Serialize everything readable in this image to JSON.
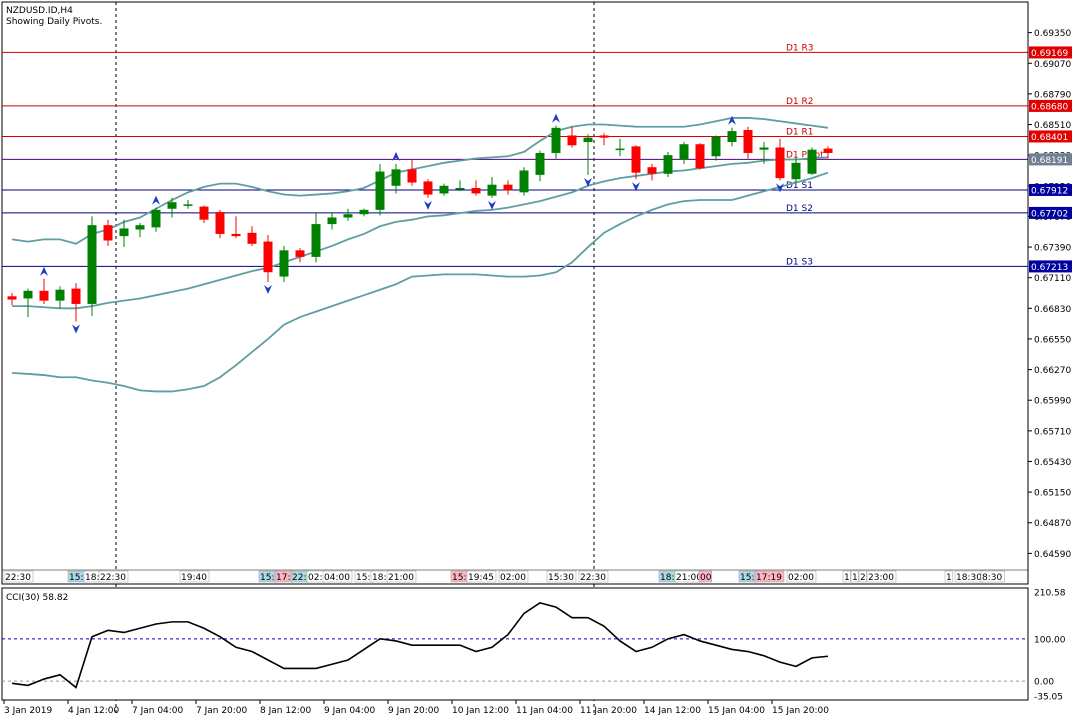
{
  "window": {
    "symbol_line": "NZDUSD.ID,H4",
    "subtitle": "Showing Daily Pivots."
  },
  "colors": {
    "bull": "#008000",
    "bear": "#ff0000",
    "band": "#5f9ea0",
    "resistance": "#d40000",
    "support": "#000080",
    "pivot": "#4b0082",
    "grid": "#000000",
    "cci": "#000000",
    "cci_level": "#0000cd"
  },
  "chart_data": [
    {
      "type": "candlestick",
      "title": "NZDUSD.ID,H4",
      "ylim": [
        0.6431,
        0.6963
      ],
      "price_ticks": [
        "0.69350",
        "0.69070",
        "0.68790",
        "0.68510",
        "0.68230",
        "0.67950",
        "0.67670",
        "0.67390",
        "0.67110",
        "0.66830",
        "0.66550",
        "0.66270",
        "0.65990",
        "0.65710",
        "0.65430",
        "0.65150",
        "0.64870",
        "0.64590"
      ],
      "levels": [
        {
          "name": "D1 R3",
          "value": 0.69169,
          "label": "0.69169",
          "kind": "resistance"
        },
        {
          "name": "D1 R2",
          "value": 0.6868,
          "label": "0.68680",
          "kind": "resistance"
        },
        {
          "name": "D1 R1",
          "value": 0.68401,
          "label": "0.68401",
          "kind": "resistance"
        },
        {
          "name": "D1 Pivot",
          "value": 0.68191,
          "label": "0.68191",
          "kind": "pivot"
        },
        {
          "name": "D1 S1",
          "value": 0.67912,
          "label": "0.67912",
          "kind": "support"
        },
        {
          "name": "D1 S2",
          "value": 0.67702,
          "label": "0.67702",
          "kind": "support"
        },
        {
          "name": "D1 S3",
          "value": 0.67213,
          "label": "0.67213",
          "kind": "support"
        }
      ],
      "candles": [
        {
          "o": 0.6694,
          "h": 0.6697,
          "l": 0.6686,
          "c": 0.6691
        },
        {
          "o": 0.6692,
          "h": 0.6701,
          "l": 0.6675,
          "c": 0.6699
        },
        {
          "o": 0.6699,
          "h": 0.671,
          "l": 0.6687,
          "c": 0.669
        },
        {
          "o": 0.669,
          "h": 0.6703,
          "l": 0.6683,
          "c": 0.67
        },
        {
          "o": 0.6701,
          "h": 0.6706,
          "l": 0.6671,
          "c": 0.6687
        },
        {
          "o": 0.6687,
          "h": 0.6767,
          "l": 0.6676,
          "c": 0.6759
        },
        {
          "o": 0.6759,
          "h": 0.6764,
          "l": 0.674,
          "c": 0.6745
        },
        {
          "o": 0.6749,
          "h": 0.6764,
          "l": 0.6739,
          "c": 0.6756
        },
        {
          "o": 0.6755,
          "h": 0.6761,
          "l": 0.6748,
          "c": 0.6759
        },
        {
          "o": 0.6757,
          "h": 0.6775,
          "l": 0.6753,
          "c": 0.6773
        },
        {
          "o": 0.6774,
          "h": 0.6784,
          "l": 0.6766,
          "c": 0.678
        },
        {
          "o": 0.6778,
          "h": 0.6782,
          "l": 0.6774,
          "c": 0.6778
        },
        {
          "o": 0.6776,
          "h": 0.6777,
          "l": 0.6761,
          "c": 0.6764
        },
        {
          "o": 0.6771,
          "h": 0.6773,
          "l": 0.6747,
          "c": 0.6751
        },
        {
          "o": 0.6751,
          "h": 0.6767,
          "l": 0.6747,
          "c": 0.6749
        },
        {
          "o": 0.6752,
          "h": 0.6758,
          "l": 0.674,
          "c": 0.6742
        },
        {
          "o": 0.6744,
          "h": 0.675,
          "l": 0.6707,
          "c": 0.6716
        },
        {
          "o": 0.6712,
          "h": 0.674,
          "l": 0.6707,
          "c": 0.6736
        },
        {
          "o": 0.6736,
          "h": 0.6738,
          "l": 0.6725,
          "c": 0.673
        },
        {
          "o": 0.673,
          "h": 0.677,
          "l": 0.6725,
          "c": 0.676
        },
        {
          "o": 0.676,
          "h": 0.677,
          "l": 0.6755,
          "c": 0.6766
        },
        {
          "o": 0.6766,
          "h": 0.6774,
          "l": 0.6763,
          "c": 0.6769
        },
        {
          "o": 0.6769,
          "h": 0.6774,
          "l": 0.6767,
          "c": 0.6773
        },
        {
          "o": 0.6773,
          "h": 0.6815,
          "l": 0.6768,
          "c": 0.6808
        },
        {
          "o": 0.6795,
          "h": 0.6815,
          "l": 0.6788,
          "c": 0.681
        },
        {
          "o": 0.681,
          "h": 0.6819,
          "l": 0.6795,
          "c": 0.6798
        },
        {
          "o": 0.6799,
          "h": 0.6801,
          "l": 0.6784,
          "c": 0.6787
        },
        {
          "o": 0.6788,
          "h": 0.6797,
          "l": 0.6786,
          "c": 0.6795
        },
        {
          "o": 0.6792,
          "h": 0.68,
          "l": 0.679,
          "c": 0.6793
        },
        {
          "o": 0.6793,
          "h": 0.68,
          "l": 0.6786,
          "c": 0.6788
        },
        {
          "o": 0.6786,
          "h": 0.6803,
          "l": 0.6784,
          "c": 0.6796
        },
        {
          "o": 0.6796,
          "h": 0.68,
          "l": 0.6787,
          "c": 0.6791
        },
        {
          "o": 0.6789,
          "h": 0.6812,
          "l": 0.6786,
          "c": 0.6809
        },
        {
          "o": 0.6805,
          "h": 0.6827,
          "l": 0.6799,
          "c": 0.6825
        },
        {
          "o": 0.6825,
          "h": 0.685,
          "l": 0.682,
          "c": 0.6848
        },
        {
          "o": 0.6841,
          "h": 0.6849,
          "l": 0.683,
          "c": 0.6832
        },
        {
          "o": 0.6835,
          "h": 0.6842,
          "l": 0.6805,
          "c": 0.6839
        },
        {
          "o": 0.6841,
          "h": 0.6843,
          "l": 0.6832,
          "c": 0.6839
        },
        {
          "o": 0.6829,
          "h": 0.6838,
          "l": 0.6822,
          "c": 0.6829
        },
        {
          "o": 0.6831,
          "h": 0.6832,
          "l": 0.6801,
          "c": 0.6807
        },
        {
          "o": 0.6812,
          "h": 0.6815,
          "l": 0.68,
          "c": 0.6806
        },
        {
          "o": 0.6806,
          "h": 0.6826,
          "l": 0.6803,
          "c": 0.6823
        },
        {
          "o": 0.6819,
          "h": 0.6835,
          "l": 0.6815,
          "c": 0.6833
        },
        {
          "o": 0.6833,
          "h": 0.6834,
          "l": 0.681,
          "c": 0.6811
        },
        {
          "o": 0.6822,
          "h": 0.6841,
          "l": 0.6818,
          "c": 0.684
        },
        {
          "o": 0.6835,
          "h": 0.6848,
          "l": 0.6831,
          "c": 0.6845
        },
        {
          "o": 0.6846,
          "h": 0.6849,
          "l": 0.682,
          "c": 0.6825
        },
        {
          "o": 0.6828,
          "h": 0.6835,
          "l": 0.6815,
          "c": 0.683
        },
        {
          "o": 0.683,
          "h": 0.6838,
          "l": 0.68,
          "c": 0.6802
        },
        {
          "o": 0.6801,
          "h": 0.6821,
          "l": 0.6798,
          "c": 0.6816
        },
        {
          "o": 0.6806,
          "h": 0.683,
          "l": 0.6805,
          "c": 0.6828
        },
        {
          "o": 0.6829,
          "h": 0.6831,
          "l": 0.682,
          "c": 0.6825
        }
      ],
      "bollinger": {
        "upper": [
          0.6746,
          0.6744,
          0.6746,
          0.6746,
          0.6742,
          0.6751,
          0.6755,
          0.6762,
          0.6766,
          0.6774,
          0.6782,
          0.6789,
          0.6794,
          0.6797,
          0.6797,
          0.6794,
          0.679,
          0.6787,
          0.6786,
          0.6787,
          0.6788,
          0.679,
          0.6793,
          0.68,
          0.6807,
          0.681,
          0.6813,
          0.6816,
          0.6818,
          0.682,
          0.6821,
          0.6822,
          0.6826,
          0.6836,
          0.6845,
          0.6849,
          0.6851,
          0.6851,
          0.685,
          0.6849,
          0.6849,
          0.6849,
          0.6849,
          0.6851,
          0.6854,
          0.6857,
          0.6857,
          0.6856,
          0.6854,
          0.6852,
          0.685,
          0.6848
        ],
        "middle": [
          0.6685,
          0.6685,
          0.6684,
          0.6683,
          0.6683,
          0.6685,
          0.6688,
          0.669,
          0.6692,
          0.6695,
          0.6698,
          0.6701,
          0.6705,
          0.6709,
          0.6713,
          0.6717,
          0.672,
          0.6725,
          0.673,
          0.6735,
          0.674,
          0.6746,
          0.6751,
          0.6758,
          0.6762,
          0.6764,
          0.6767,
          0.6768,
          0.677,
          0.6772,
          0.6773,
          0.6775,
          0.6778,
          0.6781,
          0.6785,
          0.6789,
          0.6795,
          0.6799,
          0.6802,
          0.6804,
          0.6806,
          0.6808,
          0.6809,
          0.6811,
          0.6813,
          0.6815,
          0.6816,
          0.6818,
          0.6819,
          0.6819,
          0.682,
          0.6821
        ],
        "lower": [
          0.6624,
          0.6623,
          0.6622,
          0.662,
          0.662,
          0.6617,
          0.6615,
          0.6612,
          0.6608,
          0.6607,
          0.6607,
          0.6609,
          0.6612,
          0.662,
          0.6631,
          0.6643,
          0.6655,
          0.6668,
          0.6675,
          0.668,
          0.6685,
          0.669,
          0.6695,
          0.67,
          0.6705,
          0.6712,
          0.6713,
          0.6714,
          0.6714,
          0.6714,
          0.6713,
          0.6712,
          0.6712,
          0.6713,
          0.6716,
          0.6725,
          0.6739,
          0.6752,
          0.676,
          0.6767,
          0.6773,
          0.6778,
          0.6781,
          0.6782,
          0.6782,
          0.6782,
          0.6786,
          0.679,
          0.6794,
          0.6798,
          0.6802,
          0.6807
        ]
      },
      "fractals": [
        {
          "i": 2,
          "dir": "up"
        },
        {
          "i": 4,
          "dir": "down"
        },
        {
          "i": 9,
          "dir": "up"
        },
        {
          "i": 16,
          "dir": "down"
        },
        {
          "i": 24,
          "dir": "up"
        },
        {
          "i": 26,
          "dir": "down"
        },
        {
          "i": 30,
          "dir": "down"
        },
        {
          "i": 34,
          "dir": "up"
        },
        {
          "i": 36,
          "dir": "down"
        },
        {
          "i": 39,
          "dir": "down"
        },
        {
          "i": 45,
          "dir": "up"
        },
        {
          "i": 48,
          "dir": "down"
        }
      ],
      "time_labels": [
        "3 Jan 2019",
        "4 Jan 12:00",
        "7 Jan 04:00",
        "7 Jan 20:00",
        "8 Jan 12:00",
        "9 Jan 04:00",
        "9 Jan 20:00",
        "10 Jan 12:00",
        "11 Jan 04:00",
        "11 Jan 20:00",
        "14 Jan 12:00",
        "15 Jan 04:00",
        "15 Jan 20:00"
      ],
      "session_labels": [
        {
          "text": "22:30",
          "bg": "#ffffff"
        },
        {
          "text": "15:",
          "bg": "#add8e6"
        },
        {
          "text": "18:",
          "bg": "#ffffff"
        },
        {
          "text": "22:30",
          "bg": "#ffffff"
        },
        {
          "text": "19:40",
          "bg": "#ffffff"
        },
        {
          "text": "15:",
          "bg": "#add8e6"
        },
        {
          "text": "17:",
          "bg": "#ffb6c1"
        },
        {
          "text": "22:",
          "bg": "#add8e6"
        },
        {
          "text": "02:",
          "bg": "#ffffff"
        },
        {
          "text": "04:00",
          "bg": "#ffffff"
        },
        {
          "text": "15:",
          "bg": "#ffffff"
        },
        {
          "text": "18:",
          "bg": "#ffffff"
        },
        {
          "text": "21:00",
          "bg": "#ffffff"
        },
        {
          "text": "15:",
          "bg": "#ffb6c1"
        },
        {
          "text": "19:45",
          "bg": "#ffffff"
        },
        {
          "text": "02:00",
          "bg": "#ffffff"
        },
        {
          "text": "15:30",
          "bg": "#ffffff"
        },
        {
          "text": "22:30",
          "bg": "#ffffff"
        },
        {
          "text": "18:",
          "bg": "#add8e6"
        },
        {
          "text": "21:00",
          "bg": "#ffffff"
        },
        {
          "text": "00",
          "bg": "#ffb6c1"
        },
        {
          "text": "15:",
          "bg": "#add8e6"
        },
        {
          "text": "17:19",
          "bg": "#ffb6c1"
        },
        {
          "text": "02:00",
          "bg": "#ffffff"
        },
        {
          "text": "1",
          "bg": "#ffffff"
        },
        {
          "text": "1",
          "bg": "#ffffff"
        },
        {
          "text": "2",
          "bg": "#ffffff"
        },
        {
          "text": "23:00",
          "bg": "#ffffff"
        },
        {
          "text": "1",
          "bg": "#ffffff"
        },
        {
          "text": "18:30",
          "bg": "#ffffff"
        },
        {
          "text": "8:30",
          "bg": "#ffffff"
        }
      ]
    },
    {
      "type": "line",
      "title": "CCI(30) 58.82",
      "ylim": [
        -35.05,
        210.58
      ],
      "axis_labels": [
        "210.58",
        "100.00",
        "0.00",
        "-35.05"
      ],
      "levels": [
        100,
        0
      ],
      "values": [
        -5,
        -10,
        5,
        15,
        -15,
        105,
        120,
        115,
        125,
        135,
        140,
        140,
        125,
        105,
        80,
        70,
        50,
        30,
        30,
        30,
        40,
        50,
        75,
        100,
        95,
        85,
        85,
        85,
        85,
        70,
        80,
        110,
        160,
        185,
        175,
        150,
        150,
        130,
        95,
        70,
        80,
        100,
        110,
        95,
        85,
        75,
        70,
        60,
        45,
        35,
        55,
        58.82
      ]
    }
  ]
}
